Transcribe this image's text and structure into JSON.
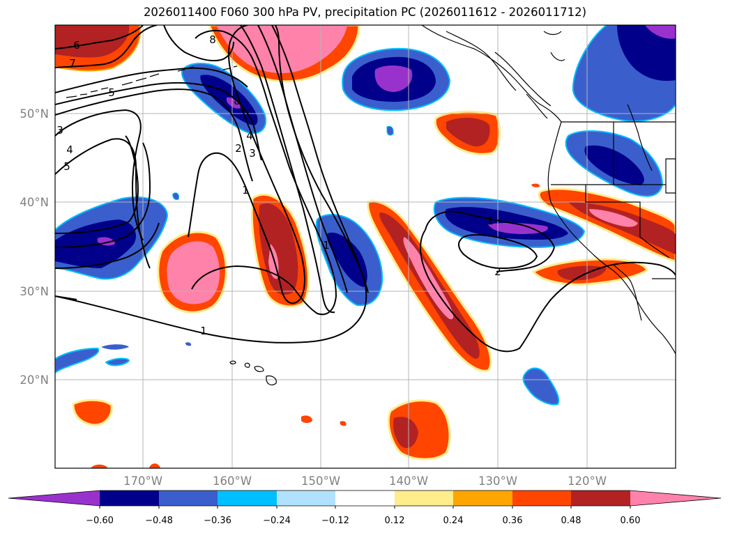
{
  "title": "2026011400 F060 300 hPa PV, precipitation PC (2026011612 - 2026011712)",
  "lat_labels": [
    "50°N",
    "40°N",
    "30°N",
    "20°N"
  ],
  "lon_labels": [
    "170°W",
    "160°W",
    "150°W",
    "140°W",
    "130°W",
    "120°W"
  ],
  "colorbar": {
    "ticks": [
      "−0.60",
      "−0.48",
      "−0.36",
      "−0.24",
      "−0.12",
      "0.12",
      "0.24",
      "0.36",
      "0.48",
      "0.60"
    ],
    "colors": [
      "#9932CC",
      "#00008B",
      "#3A5FCD",
      "#00BFFF",
      "#B0E2FF",
      "#FFFFFF",
      "#FFEC8B",
      "#FFA500",
      "#FF4500",
      "#B22222",
      "#FF82AB"
    ]
  },
  "contour_labels": [
    "6",
    "7",
    "8",
    "5",
    "4",
    "5",
    "3",
    "8",
    "4",
    "3",
    "2",
    "1",
    "1",
    "2",
    "1",
    "1"
  ],
  "colors": {
    "purple": "#9932CC",
    "navy": "#00008B",
    "blue": "#3A5FCD",
    "sky": "#00BFFF",
    "light_sky": "#B0E2FF",
    "yellow": "#FFEC8B",
    "orange": "#FFA500",
    "orangered": "#FF4500",
    "firebrick": "#B22222",
    "pink": "#FF82AB"
  }
}
